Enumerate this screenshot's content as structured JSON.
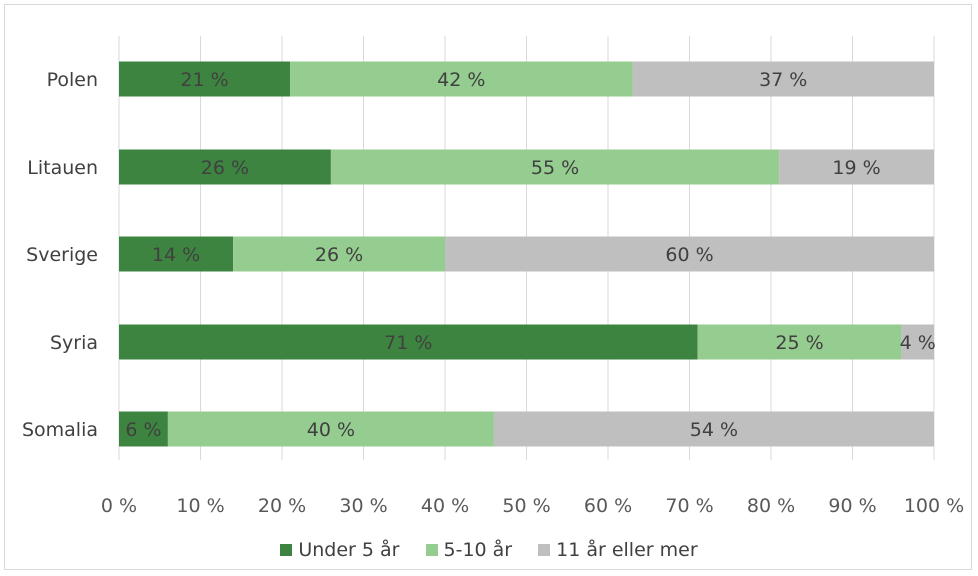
{
  "chart_data": {
    "type": "bar",
    "orientation": "horizontal",
    "stacked": true,
    "categories": [
      "Polen",
      "Litauen",
      "Sverige",
      "Syria",
      "Somalia"
    ],
    "series": [
      {
        "name": "Under 5 år",
        "color": "#3e8441",
        "values": [
          21,
          26,
          14,
          71,
          6
        ]
      },
      {
        "name": "5-10 år",
        "color": "#95cc8f",
        "values": [
          42,
          55,
          26,
          25,
          40
        ]
      },
      {
        "name": "11 år eller mer",
        "color": "#bfbfbf",
        "values": [
          37,
          19,
          60,
          4,
          54
        ]
      }
    ],
    "data_labels": [
      [
        "21 %",
        "42 %",
        "37 %"
      ],
      [
        "26 %",
        "55 %",
        "19 %"
      ],
      [
        "14 %",
        "26 %",
        "60 %"
      ],
      [
        "71 %",
        "25 %",
        "4 %"
      ],
      [
        "6 %",
        "40 %",
        "54 %"
      ]
    ],
    "xlim": [
      0,
      100
    ],
    "x_ticks": [
      "0 %",
      "10 %",
      "20 %",
      "30 %",
      "40 %",
      "50 %",
      "60 %",
      "70 %",
      "80 %",
      "90 %",
      "100 %"
    ],
    "grid": true,
    "legend_position": "bottom"
  }
}
